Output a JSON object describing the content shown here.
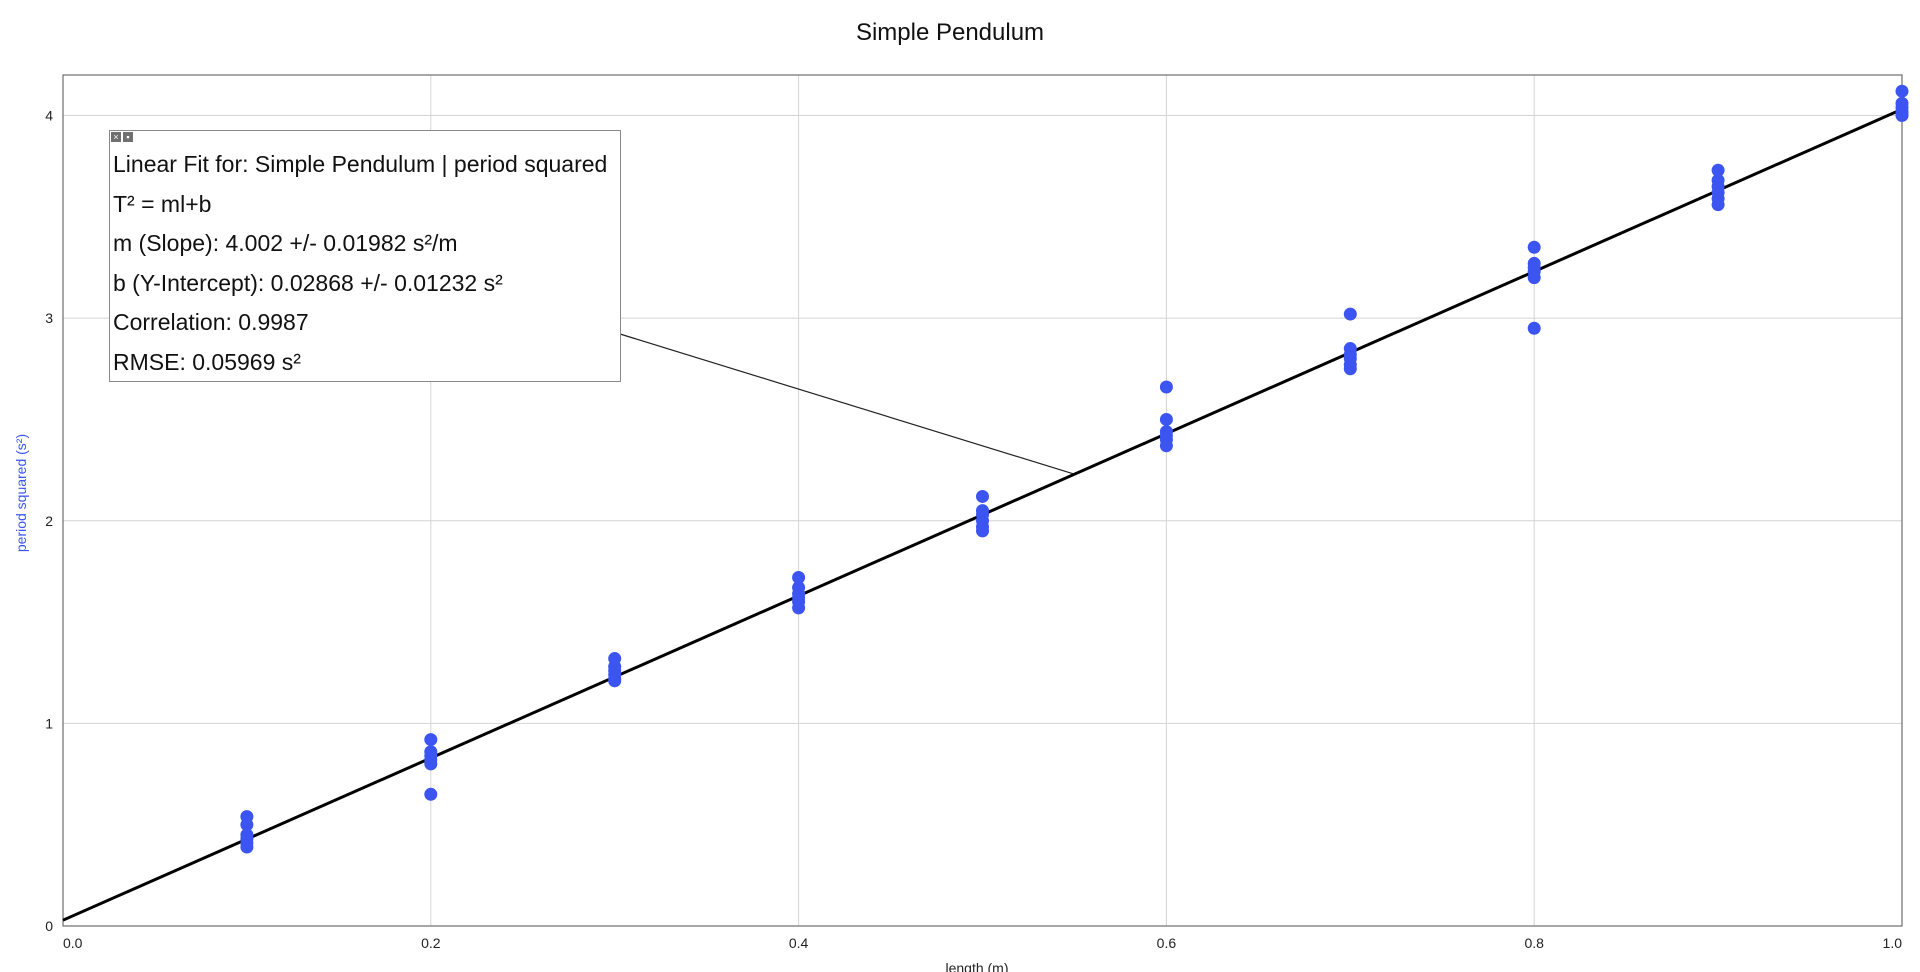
{
  "chart_data": {
    "type": "scatter",
    "title": "Simple Pendulum",
    "xlabel": "length (m)",
    "ylabel": "period squared (s²)",
    "xlim": [
      0.0,
      1.0
    ],
    "ylim": [
      0,
      4.2
    ],
    "x_ticks": [
      "0.0",
      "0.2",
      "0.4",
      "0.6",
      "0.8",
      "1.0"
    ],
    "y_ticks": [
      "0",
      "1",
      "2",
      "3",
      "4"
    ],
    "x_tick_values": [
      0.0,
      0.2,
      0.4,
      0.6,
      0.8,
      1.0
    ],
    "y_tick_values": [
      0,
      1,
      2,
      3,
      4
    ],
    "grid": true,
    "point_color": "#3d55f0",
    "fit_color": "#000000",
    "ylabel_color": "#3d55f0",
    "points": [
      [
        0.1,
        0.54
      ],
      [
        0.1,
        0.5
      ],
      [
        0.1,
        0.45
      ],
      [
        0.1,
        0.43
      ],
      [
        0.1,
        0.41
      ],
      [
        0.1,
        0.39
      ],
      [
        0.2,
        0.92
      ],
      [
        0.2,
        0.86
      ],
      [
        0.2,
        0.84
      ],
      [
        0.2,
        0.82
      ],
      [
        0.2,
        0.8
      ],
      [
        0.2,
        0.65
      ],
      [
        0.3,
        1.32
      ],
      [
        0.3,
        1.28
      ],
      [
        0.3,
        1.26
      ],
      [
        0.3,
        1.24
      ],
      [
        0.3,
        1.22
      ],
      [
        0.3,
        1.21
      ],
      [
        0.4,
        1.72
      ],
      [
        0.4,
        1.67
      ],
      [
        0.4,
        1.64
      ],
      [
        0.4,
        1.62
      ],
      [
        0.4,
        1.6
      ],
      [
        0.4,
        1.57
      ],
      [
        0.5,
        2.12
      ],
      [
        0.5,
        2.05
      ],
      [
        0.5,
        2.03
      ],
      [
        0.5,
        2.0
      ],
      [
        0.5,
        1.97
      ],
      [
        0.5,
        1.95
      ],
      [
        0.6,
        2.66
      ],
      [
        0.6,
        2.5
      ],
      [
        0.6,
        2.44
      ],
      [
        0.6,
        2.42
      ],
      [
        0.6,
        2.4
      ],
      [
        0.6,
        2.37
      ],
      [
        0.7,
        3.02
      ],
      [
        0.7,
        2.85
      ],
      [
        0.7,
        2.82
      ],
      [
        0.7,
        2.8
      ],
      [
        0.7,
        2.77
      ],
      [
        0.7,
        2.75
      ],
      [
        0.8,
        3.35
      ],
      [
        0.8,
        3.27
      ],
      [
        0.8,
        3.25
      ],
      [
        0.8,
        3.23
      ],
      [
        0.8,
        3.2
      ],
      [
        0.8,
        2.95
      ],
      [
        0.9,
        3.73
      ],
      [
        0.9,
        3.68
      ],
      [
        0.9,
        3.65
      ],
      [
        0.9,
        3.62
      ],
      [
        0.9,
        3.59
      ],
      [
        0.9,
        3.56
      ],
      [
        1.0,
        4.12
      ],
      [
        1.0,
        4.06
      ],
      [
        1.0,
        4.04
      ],
      [
        1.0,
        4.02
      ],
      [
        1.0,
        4.01
      ],
      [
        1.0,
        4.0
      ]
    ],
    "fit": {
      "slope": 4.002,
      "intercept": 0.02868,
      "annotation_x": 0.55
    }
  },
  "fit_box": {
    "title": "Linear Fit for: Simple Pendulum | period squared",
    "equation": "T² = ml+b",
    "slope": "m (Slope): 4.002 +/- 0.01982 s²/m",
    "intercept": "b (Y-Intercept): 0.02868 +/- 0.01232 s²",
    "correlation": "Correlation: 0.9987",
    "rmse": "RMSE: 0.05969 s²",
    "close_icon": "×",
    "pin_icon": "▪"
  }
}
